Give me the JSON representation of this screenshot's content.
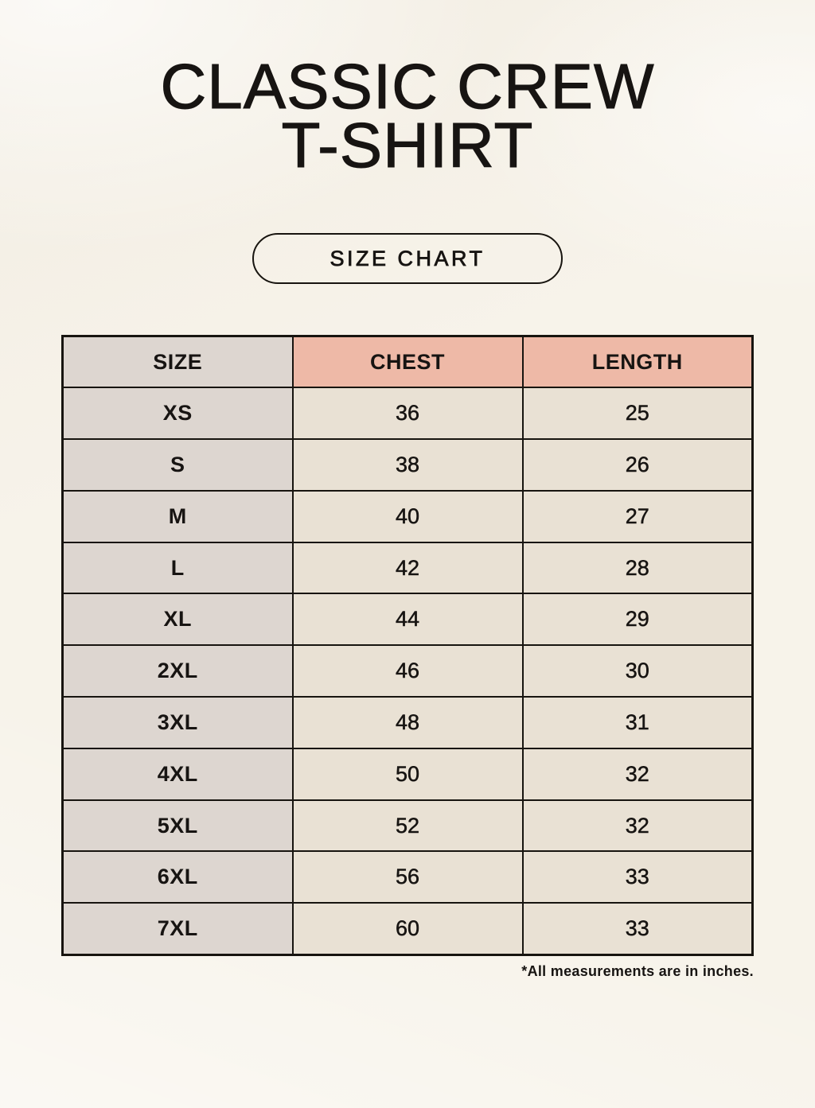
{
  "header": {
    "title_line1": "CLASSIC CREW",
    "title_line2": "T-SHIRT"
  },
  "size_chart_button": {
    "label": "SIZE CHART"
  },
  "chart_data": {
    "type": "table",
    "title": "Classic Crew T-Shirt Size Chart",
    "columns": [
      "SIZE",
      "CHEST",
      "LENGTH"
    ],
    "rows": [
      [
        "XS",
        "36",
        "25"
      ],
      [
        "S",
        "38",
        "26"
      ],
      [
        "M",
        "40",
        "27"
      ],
      [
        "L",
        "42",
        "28"
      ],
      [
        "XL",
        "44",
        "29"
      ],
      [
        "2XL",
        "46",
        "30"
      ],
      [
        "3XL",
        "48",
        "31"
      ],
      [
        "4XL",
        "50",
        "32"
      ],
      [
        "5XL",
        "52",
        "32"
      ],
      [
        "6XL",
        "56",
        "33"
      ],
      [
        "7XL",
        "60",
        "33"
      ]
    ],
    "units": "inches",
    "footnote": "*All measurements are in inches."
  },
  "colors": {
    "background": "#f7f3ea",
    "table_border": "#17140f",
    "size_column_bg": "#ddd6d0",
    "measure_header_bg": "#eeb9a7",
    "data_cell_bg": "#e9e1d4",
    "text": "#171412"
  }
}
